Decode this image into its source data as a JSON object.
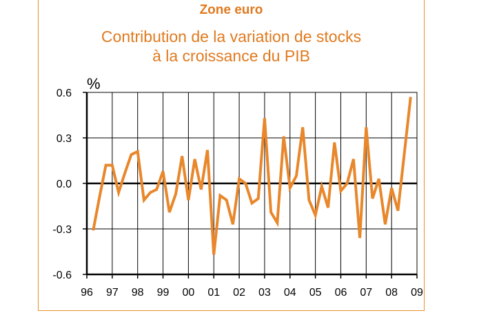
{
  "chart_data": {
    "type": "line",
    "supertitle": "Zone euro",
    "title_line1": "Contribution de la variation de stocks",
    "title_line2": "à la croissance du PIB",
    "ylabel": "%",
    "xlabel": "",
    "ylim": [
      -0.6,
      0.6
    ],
    "yticks": [
      -0.6,
      -0.3,
      0.0,
      0.3,
      0.6
    ],
    "ytick_labels": [
      "-0.6",
      "-0.3",
      "0.0",
      "0.3",
      "0.6"
    ],
    "xlim": [
      1996.0,
      2009.0
    ],
    "xticks": [
      1996,
      1997,
      1998,
      1999,
      2000,
      2001,
      2002,
      2003,
      2004,
      2005,
      2006,
      2007,
      2008,
      2009
    ],
    "xtick_labels": [
      "96",
      "97",
      "98",
      "99",
      "00",
      "01",
      "02",
      "03",
      "04",
      "05",
      "06",
      "07",
      "08",
      "09"
    ],
    "grid": true,
    "line_color": "#e8872b",
    "series": [
      {
        "x": [
          1996.25,
          1996.5,
          1996.75,
          1997.0,
          1997.25,
          1997.5,
          1997.75,
          1998.0,
          1998.25,
          1998.5,
          1998.75,
          1999.0,
          1999.25,
          1999.5,
          1999.75,
          2000.0,
          2000.25,
          2000.5,
          2000.75,
          2001.0,
          2001.25,
          2001.5,
          2001.75,
          2002.0,
          2002.25,
          2002.5,
          2002.75,
          2003.0,
          2003.25,
          2003.5,
          2003.75,
          2004.0,
          2004.25,
          2004.5,
          2004.75,
          2005.0,
          2005.25,
          2005.5,
          2005.75,
          2006.0,
          2006.25,
          2006.5,
          2006.75,
          2007.0,
          2007.25,
          2007.5,
          2007.75,
          2008.0,
          2008.25,
          2008.75
        ],
        "values": [
          -0.31,
          -0.09,
          0.12,
          0.12,
          -0.06,
          0.07,
          0.19,
          0.21,
          -0.11,
          -0.06,
          -0.04,
          0.08,
          -0.19,
          -0.07,
          0.18,
          -0.11,
          0.16,
          -0.04,
          0.22,
          -0.47,
          -0.08,
          -0.11,
          -0.27,
          0.03,
          0.0,
          -0.13,
          -0.1,
          0.43,
          -0.19,
          -0.26,
          0.31,
          -0.03,
          0.05,
          0.37,
          -0.11,
          -0.21,
          -0.02,
          -0.16,
          0.27,
          -0.05,
          0.0,
          0.16,
          -0.36,
          0.37,
          -0.1,
          0.03,
          -0.27,
          -0.03,
          -0.18,
          0.57
        ]
      }
    ]
  }
}
